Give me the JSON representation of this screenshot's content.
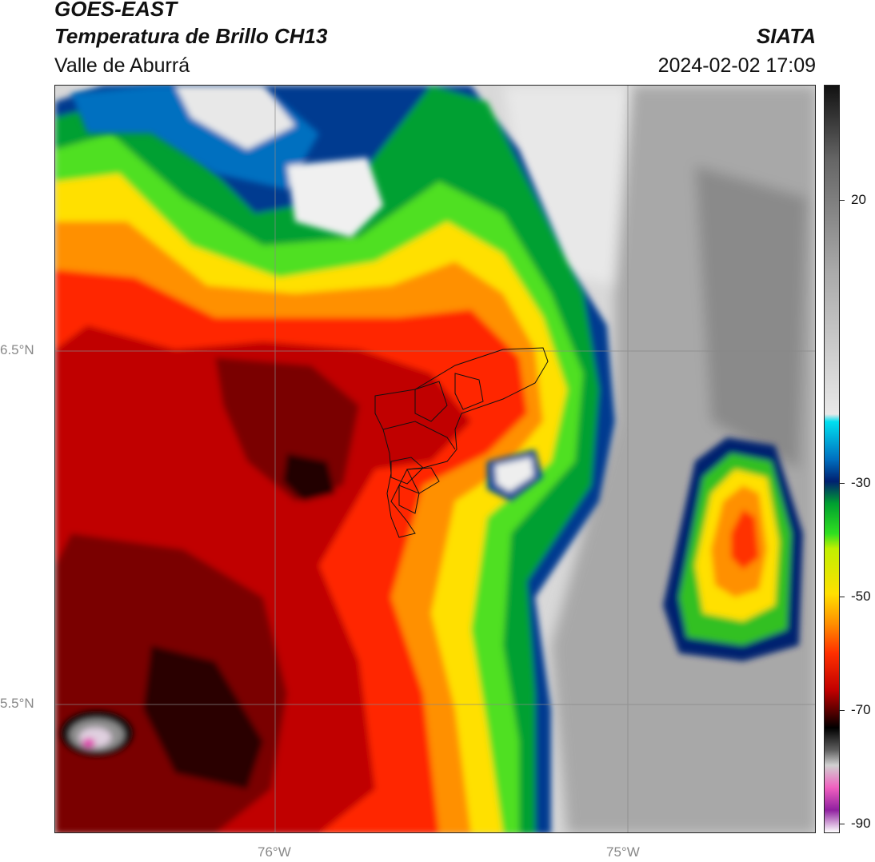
{
  "header": {
    "satellite": "GOES-EAST",
    "product": "Temperatura de Brillo CH13",
    "region": "Valle de Aburrá",
    "agency": "SIATA",
    "datetime": "2024-02-02 17:09"
  },
  "map": {
    "lat_labels": [
      "6.5°N",
      "5.5°N"
    ],
    "lon_labels": [
      "76°W",
      "75°W"
    ]
  },
  "colorbar": {
    "ticks": [
      "20",
      "-30",
      "-50",
      "-70",
      "-90"
    ],
    "colors": [
      "#111111",
      "#666666",
      "#aaaaaa",
      "#e8e8e8",
      "#00e0f0",
      "#0070c0",
      "#002070",
      "#00a030",
      "#30e020",
      "#c0f000",
      "#ffe000",
      "#ff9000",
      "#ff3000",
      "#c00000",
      "#500000",
      "#000000",
      "#606060",
      "#d0d0d0",
      "#f060c0",
      "#9020a0",
      "#ffffff"
    ]
  }
}
